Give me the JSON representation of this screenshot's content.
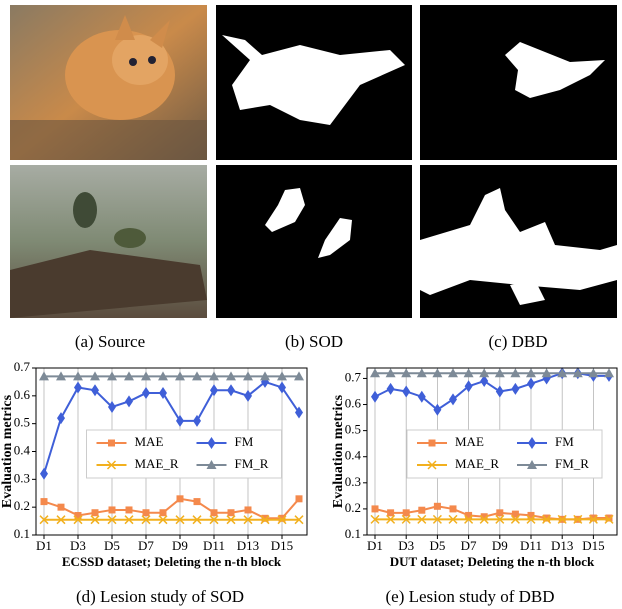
{
  "figure": {
    "captions": [
      "(a) Source",
      "(b) SOD",
      "(c) DBD",
      "(d) Lesion study of SOD",
      "(e) Lesion study of DBD"
    ]
  },
  "chart_data": [
    {
      "type": "line",
      "xlabel": "ECSSD dataset; Deleting the n-th block",
      "ylabel": "Evaluation metrics",
      "categories": [
        "D1",
        null,
        "D3",
        null,
        "D5",
        null,
        "D7",
        null,
        "D9",
        null,
        "D11",
        null,
        "D13",
        null,
        "D15",
        null
      ],
      "ylim": [
        0.1,
        0.7
      ],
      "yticks": [
        0.1,
        0.2,
        0.3,
        0.4,
        0.5,
        0.6,
        0.7
      ],
      "legend": "center",
      "grid": true,
      "series": [
        {
          "name": "MAE",
          "color": "#f4894c",
          "marker": "square",
          "values": [
            0.22,
            0.2,
            0.17,
            0.18,
            0.19,
            0.19,
            0.18,
            0.18,
            0.23,
            0.22,
            0.18,
            0.18,
            0.19,
            0.16,
            0.16,
            0.23
          ]
        },
        {
          "name": "FM",
          "color": "#3f5fd8",
          "marker": "diamond",
          "values": [
            0.32,
            0.52,
            0.63,
            0.62,
            0.56,
            0.58,
            0.61,
            0.61,
            0.51,
            0.51,
            0.62,
            0.62,
            0.6,
            0.65,
            0.63,
            0.54
          ]
        },
        {
          "name": "MAE_R",
          "color": "#f2b01e",
          "marker": "x",
          "values": [
            0.155,
            0.155,
            0.155,
            0.155,
            0.155,
            0.155,
            0.155,
            0.155,
            0.155,
            0.155,
            0.155,
            0.155,
            0.155,
            0.155,
            0.155,
            0.155
          ]
        },
        {
          "name": "FM_R",
          "color": "#7d8a97",
          "marker": "triangle",
          "values": [
            0.67,
            0.67,
            0.67,
            0.67,
            0.67,
            0.67,
            0.67,
            0.67,
            0.67,
            0.67,
            0.67,
            0.67,
            0.67,
            0.67,
            0.67,
            0.67
          ]
        }
      ]
    },
    {
      "type": "line",
      "xlabel": "DUT dataset; Deleting the n-th block",
      "ylabel": "Evaluation metrics",
      "categories": [
        "D1",
        null,
        "D3",
        null,
        "D5",
        null,
        "D7",
        null,
        "D9",
        null,
        "D11",
        null,
        "D13",
        null,
        "D15",
        null
      ],
      "ylim": [
        0.1,
        0.74
      ],
      "yticks": [
        0.1,
        0.2,
        0.3,
        0.4,
        0.5,
        0.6,
        0.7
      ],
      "legend": "center",
      "grid": true,
      "series": [
        {
          "name": "MAE",
          "color": "#f4894c",
          "marker": "square",
          "values": [
            0.2,
            0.185,
            0.185,
            0.195,
            0.21,
            0.2,
            0.175,
            0.17,
            0.185,
            0.18,
            0.175,
            0.165,
            0.16,
            0.16,
            0.165,
            0.165
          ]
        },
        {
          "name": "FM",
          "color": "#3f5fd8",
          "marker": "diamond",
          "values": [
            0.63,
            0.66,
            0.65,
            0.63,
            0.58,
            0.62,
            0.67,
            0.69,
            0.65,
            0.66,
            0.68,
            0.7,
            0.72,
            0.72,
            0.71,
            0.71
          ]
        },
        {
          "name": "MAE_R",
          "color": "#f2b01e",
          "marker": "x",
          "values": [
            0.16,
            0.16,
            0.16,
            0.16,
            0.16,
            0.16,
            0.16,
            0.16,
            0.16,
            0.16,
            0.16,
            0.16,
            0.16,
            0.16,
            0.16,
            0.16
          ]
        },
        {
          "name": "FM_R",
          "color": "#7d8a97",
          "marker": "triangle",
          "values": [
            0.72,
            0.72,
            0.72,
            0.72,
            0.72,
            0.72,
            0.72,
            0.72,
            0.72,
            0.72,
            0.72,
            0.72,
            0.72,
            0.72,
            0.72,
            0.72
          ]
        }
      ]
    }
  ]
}
